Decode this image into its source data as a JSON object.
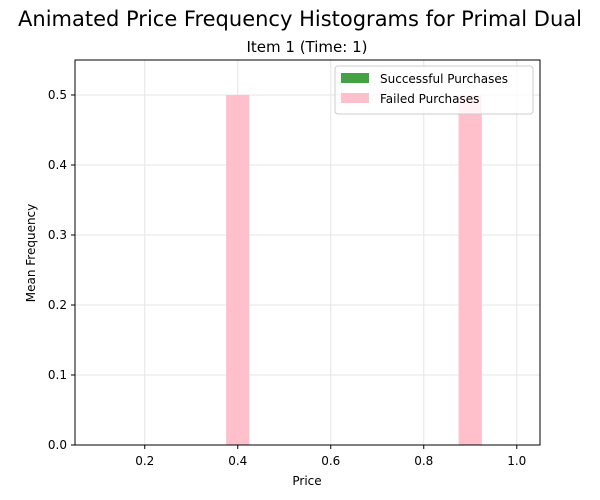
{
  "chart_data": {
    "type": "bar",
    "suptitle": "Animated Price Frequency Histograms for Primal Dual",
    "title": "Item 1 (Time: 1)",
    "xlabel": "Price",
    "ylabel": "Mean Frequency",
    "xlim": [
      0.05,
      1.05
    ],
    "ylim": [
      0,
      0.55
    ],
    "xticks": [
      0.2,
      0.4,
      0.6,
      0.8,
      1.0
    ],
    "xtick_labels": [
      "0.2",
      "0.4",
      "0.6",
      "0.8",
      "1.0"
    ],
    "yticks": [
      0.0,
      0.1,
      0.2,
      0.3,
      0.4,
      0.5
    ],
    "ytick_labels": [
      "0.0",
      "0.1",
      "0.2",
      "0.3",
      "0.4",
      "0.5"
    ],
    "grid": true,
    "legend_position": "top-right",
    "bar_width": 0.05,
    "series": [
      {
        "name": "Successful Purchases",
        "color": "#46a046",
        "x": [],
        "values": []
      },
      {
        "name": "Failed Purchases",
        "color": "#ffc0cb",
        "x": [
          0.4,
          0.9
        ],
        "values": [
          0.5,
          0.5
        ]
      }
    ]
  }
}
